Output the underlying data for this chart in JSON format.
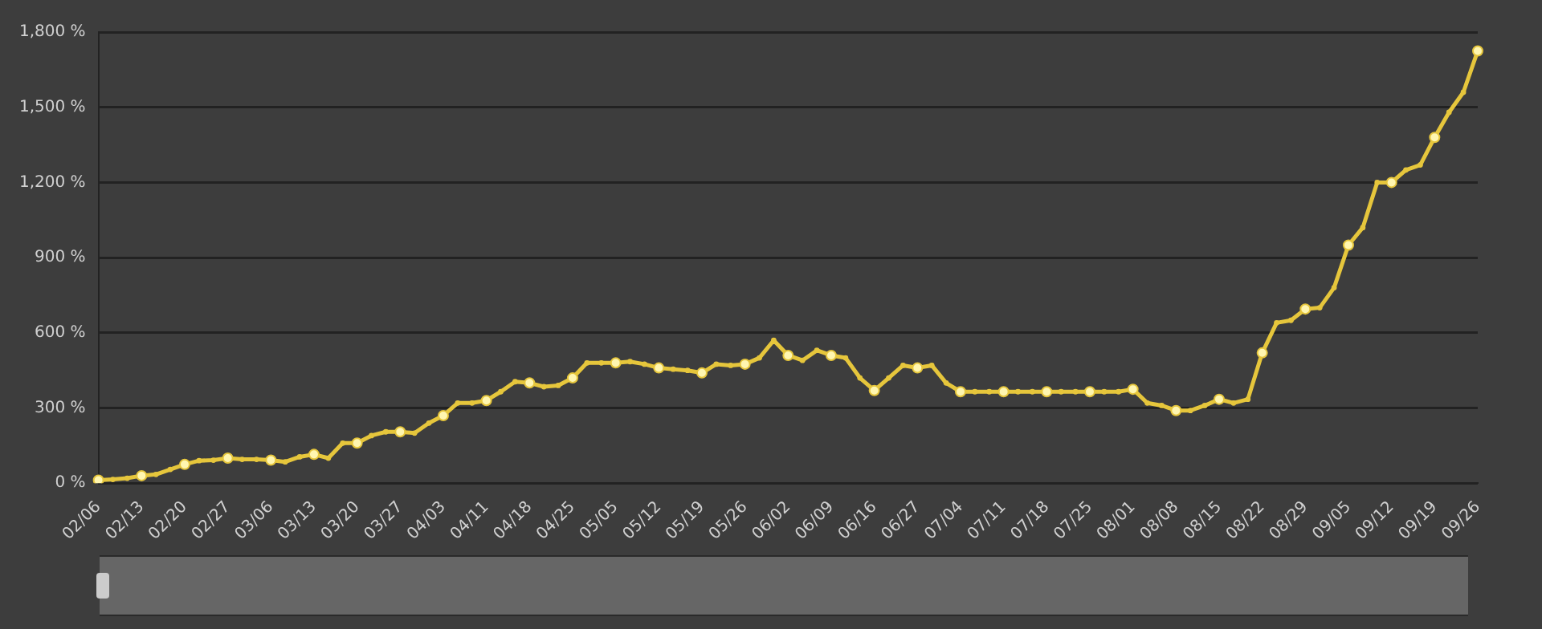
{
  "chart_data": {
    "type": "line",
    "categories": [
      "02/06",
      null,
      null,
      "02/13",
      null,
      null,
      "02/20",
      null,
      null,
      "02/27",
      null,
      null,
      "03/06",
      null,
      null,
      "03/13",
      null,
      null,
      "03/20",
      null,
      null,
      "03/27",
      null,
      null,
      "04/03",
      null,
      null,
      "04/11",
      null,
      null,
      "04/18",
      null,
      null,
      "04/25",
      null,
      null,
      "05/05",
      null,
      null,
      "05/12",
      null,
      null,
      "05/19",
      null,
      null,
      "05/26",
      null,
      null,
      "06/02",
      null,
      null,
      "06/09",
      null,
      null,
      "06/16",
      null,
      null,
      "06/27",
      null,
      null,
      "07/04",
      null,
      null,
      "07/11",
      null,
      null,
      "07/18",
      null,
      null,
      "07/25",
      null,
      null,
      "08/01",
      null,
      null,
      "08/08",
      null,
      null,
      "08/15",
      null,
      null,
      "08/22",
      null,
      null,
      "08/29",
      null,
      null,
      "09/05",
      null,
      null,
      "09/12",
      null,
      null,
      "09/19",
      null,
      null,
      "09/26"
    ],
    "series": [
      {
        "color": "#e6c63c",
        "values": [
          12,
          15,
          20,
          30,
          35,
          55,
          75,
          90,
          92,
          100,
          95,
          95,
          92,
          85,
          105,
          115,
          100,
          160,
          160,
          190,
          205,
          205,
          200,
          240,
          270,
          320,
          320,
          330,
          365,
          405,
          400,
          385,
          390,
          420,
          480,
          480,
          480,
          485,
          475,
          460,
          455,
          450,
          440,
          475,
          470,
          475,
          500,
          570,
          510,
          490,
          530,
          510,
          500,
          420,
          370,
          420,
          470,
          460,
          470,
          400,
          365,
          365,
          365,
          365,
          365,
          365,
          365,
          365,
          365,
          365,
          365,
          365,
          375,
          320,
          310,
          290,
          290,
          310,
          335,
          320,
          335,
          520,
          640,
          650,
          695,
          700,
          780,
          950,
          1020,
          1200,
          1200,
          1250,
          1270,
          1380,
          1480,
          1560,
          1725
        ]
      }
    ],
    "ylim": [
      0,
      1800
    ],
    "yticks": [
      {
        "value": 0,
        "label": "0 %"
      },
      {
        "value": 300,
        "label": "300 %"
      },
      {
        "value": 600,
        "label": "600 %"
      },
      {
        "value": 900,
        "label": "900 %"
      },
      {
        "value": 1200,
        "label": "1,200 %"
      },
      {
        "value": 1500,
        "label": "1,500 %"
      },
      {
        "value": 1800,
        "label": "1,800 %"
      }
    ],
    "grid": "y",
    "marker": "circle",
    "line_style": "solid",
    "legend": false
  }
}
